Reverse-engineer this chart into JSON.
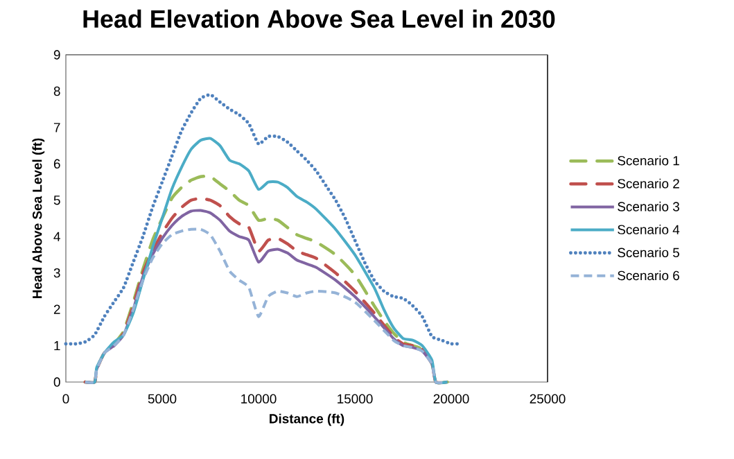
{
  "chart_data": {
    "type": "line",
    "title": "Head Elevation Above Sea Level in 2030",
    "xlabel": "Distance  (ft)",
    "ylabel": "Head Above Sea Level (ft)",
    "xlim": [
      0,
      25000
    ],
    "xticks": [
      0,
      5000,
      10000,
      15000,
      20000,
      25000
    ],
    "ylim": [
      0,
      9
    ],
    "yticks": [
      0,
      1,
      2,
      3,
      4,
      5,
      6,
      7,
      8,
      9
    ],
    "grid": false,
    "legend": "right",
    "marker": "none",
    "series": [
      {
        "name": "Scenario 1",
        "color": "#9bbb59",
        "line_style": "dashdot",
        "x": [
          1000,
          1500,
          1600,
          2000,
          2500,
          3000,
          3500,
          4000,
          4500,
          5000,
          5500,
          6000,
          6500,
          7000,
          7500,
          8000,
          8500,
          9000,
          9500,
          10000,
          10500,
          11000,
          11500,
          12000,
          12500,
          13000,
          14000,
          15000,
          16000,
          16500,
          17000,
          17500,
          18000,
          18500,
          19000,
          19200,
          19800
        ],
        "values": [
          0,
          0,
          0.35,
          0.8,
          1.05,
          1.4,
          2.2,
          3.1,
          3.9,
          4.5,
          5.05,
          5.35,
          5.55,
          5.65,
          5.65,
          5.45,
          5.25,
          5.0,
          4.85,
          4.45,
          4.5,
          4.45,
          4.25,
          4.05,
          3.95,
          3.85,
          3.5,
          2.95,
          2.1,
          1.7,
          1.35,
          1.1,
          1.0,
          0.9,
          0.5,
          0,
          0
        ]
      },
      {
        "name": "Scenario 2",
        "color": "#c0504d",
        "line_style": "dashdot",
        "x": [
          1000,
          1500,
          1600,
          2000,
          2500,
          3000,
          3500,
          4000,
          4500,
          5000,
          5500,
          6000,
          6500,
          7000,
          7500,
          8000,
          8500,
          9000,
          9500,
          10000,
          10500,
          11000,
          11500,
          12000,
          12500,
          13000,
          14000,
          15000,
          16000,
          17000,
          17500,
          18000,
          18500,
          19000,
          19200,
          19800
        ],
        "values": [
          0,
          0,
          0.35,
          0.8,
          1.0,
          1.35,
          2.1,
          3.0,
          3.6,
          4.1,
          4.5,
          4.8,
          5.0,
          5.05,
          5.0,
          4.85,
          4.55,
          4.35,
          4.25,
          3.6,
          3.9,
          3.95,
          3.8,
          3.6,
          3.5,
          3.4,
          3.0,
          2.5,
          1.9,
          1.25,
          1.05,
          1.0,
          0.9,
          0.5,
          0,
          0
        ]
      },
      {
        "name": "Scenario 3",
        "color": "#8064a2",
        "line_style": "solid",
        "x": [
          1000,
          1500,
          1600,
          2000,
          2500,
          3000,
          3500,
          4000,
          4500,
          5000,
          5500,
          6000,
          6500,
          7000,
          7500,
          8000,
          8500,
          9000,
          9500,
          10000,
          10500,
          11000,
          11500,
          12000,
          12500,
          13000,
          14000,
          15000,
          16000,
          17000,
          17500,
          18000,
          18500,
          19000,
          19200,
          19800
        ],
        "values": [
          0,
          0,
          0.35,
          0.8,
          1.0,
          1.3,
          2.0,
          2.9,
          3.5,
          3.95,
          4.3,
          4.55,
          4.7,
          4.72,
          4.65,
          4.45,
          4.15,
          4.0,
          3.9,
          3.3,
          3.6,
          3.65,
          3.55,
          3.35,
          3.25,
          3.15,
          2.8,
          2.35,
          1.8,
          1.2,
          1.0,
          0.95,
          0.85,
          0.5,
          0,
          0
        ]
      },
      {
        "name": "Scenario 4",
        "color": "#4bacc6",
        "line_style": "solid",
        "x": [
          1000,
          1500,
          1600,
          2000,
          2500,
          3000,
          3500,
          4000,
          4500,
          5000,
          5500,
          6000,
          6500,
          7000,
          7500,
          8000,
          8500,
          9000,
          9500,
          10000,
          10500,
          11000,
          11500,
          12000,
          12500,
          13000,
          14000,
          15000,
          16000,
          16500,
          17000,
          17500,
          18000,
          18500,
          19000,
          19200,
          19800
        ],
        "values": [
          0,
          0,
          0.4,
          0.8,
          1.1,
          1.3,
          1.9,
          2.8,
          3.7,
          4.5,
          5.3,
          5.9,
          6.4,
          6.65,
          6.7,
          6.5,
          6.1,
          6.0,
          5.8,
          5.3,
          5.5,
          5.5,
          5.35,
          5.1,
          4.95,
          4.75,
          4.2,
          3.5,
          2.6,
          2.0,
          1.5,
          1.2,
          1.15,
          1.0,
          0.6,
          0,
          0
        ]
      },
      {
        "name": "Scenario 5",
        "color": "#4f81bd",
        "line_style": "dotted",
        "x": [
          0,
          500,
          1000,
          1500,
          2000,
          2500,
          3000,
          3500,
          4000,
          4500,
          5000,
          5500,
          6000,
          6500,
          7000,
          7500,
          8000,
          8500,
          9000,
          9500,
          10000,
          10500,
          11000,
          11500,
          12000,
          12500,
          13000,
          13500,
          14000,
          14500,
          15000,
          15500,
          16000,
          16500,
          17000,
          17500,
          18000,
          18500,
          19000,
          19500,
          20000,
          20500
        ],
        "values": [
          1.05,
          1.05,
          1.1,
          1.3,
          1.8,
          2.2,
          2.6,
          3.3,
          4.0,
          4.8,
          5.5,
          6.2,
          6.9,
          7.4,
          7.8,
          7.9,
          7.7,
          7.5,
          7.35,
          7.1,
          6.55,
          6.75,
          6.75,
          6.6,
          6.35,
          6.1,
          5.8,
          5.4,
          5.0,
          4.5,
          3.9,
          3.3,
          2.8,
          2.5,
          2.35,
          2.3,
          2.1,
          1.8,
          1.25,
          1.15,
          1.05,
          1.05
        ]
      },
      {
        "name": "Scenario 6",
        "color": "#95b3d7",
        "line_style": "dashed",
        "x": [
          1000,
          1500,
          1600,
          2000,
          2500,
          3000,
          3500,
          4000,
          4500,
          5000,
          5500,
          6000,
          6500,
          7000,
          7500,
          8000,
          8500,
          9000,
          9500,
          10000,
          10500,
          11000,
          11500,
          12000,
          12500,
          13000,
          14000,
          15000,
          16000,
          17000,
          17500,
          18000,
          18500,
          19000,
          19200,
          19800
        ],
        "values": [
          0,
          0,
          0.35,
          0.8,
          1.0,
          1.3,
          2.0,
          2.8,
          3.4,
          3.8,
          4.05,
          4.15,
          4.2,
          4.2,
          4.05,
          3.6,
          3.05,
          2.8,
          2.6,
          1.8,
          2.35,
          2.5,
          2.45,
          2.35,
          2.45,
          2.5,
          2.45,
          2.2,
          1.7,
          1.15,
          1.0,
          0.95,
          0.85,
          0.5,
          0,
          0
        ]
      }
    ]
  }
}
